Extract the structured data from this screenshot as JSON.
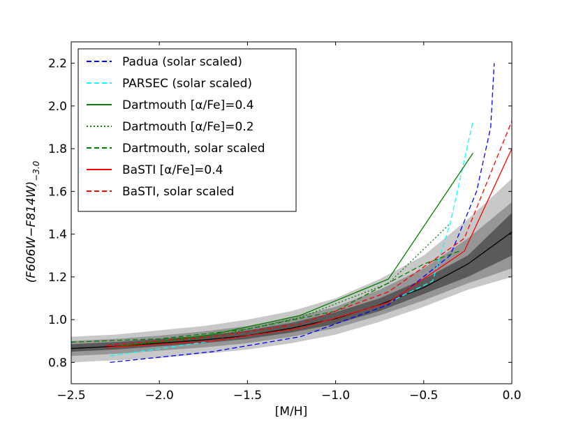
{
  "chart_data": {
    "type": "line",
    "title": "",
    "xlabel": "[M/H]",
    "ylabel": "(F606W−F814W)",
    "ylabel_subscript": "−3.0",
    "xlim": [
      -2.5,
      0.0
    ],
    "ylim": [
      0.7,
      2.3
    ],
    "xticks": [
      -2.5,
      -2.0,
      -1.5,
      -1.0,
      -0.5,
      0.0
    ],
    "xtick_labels": [
      "−2.5",
      "−2.0",
      "−1.5",
      "−1.0",
      "−0.5",
      "0.0"
    ],
    "yticks": [
      0.8,
      1.0,
      1.2,
      1.4,
      1.6,
      1.8,
      2.0,
      2.2
    ],
    "ytick_labels": [
      "0.8",
      "1.0",
      "1.2",
      "1.4",
      "1.6",
      "1.8",
      "2.0",
      "2.2"
    ],
    "legend_position": "top-left",
    "background_bands": [
      {
        "name": "outer-spread",
        "color": "#c8c8c8",
        "x": [
          -2.5,
          -2.25,
          -2.0,
          -1.75,
          -1.5,
          -1.25,
          -1.0,
          -0.75,
          -0.5,
          -0.25,
          0.0
        ],
        "low": [
          0.8,
          0.81,
          0.82,
          0.84,
          0.86,
          0.89,
          0.93,
          0.99,
          1.06,
          1.14,
          1.2
        ],
        "high": [
          0.92,
          0.93,
          0.95,
          0.97,
          1.0,
          1.04,
          1.1,
          1.19,
          1.3,
          1.47,
          1.66
        ]
      },
      {
        "name": "mid-spread",
        "color": "#969696",
        "x": [
          -2.5,
          -2.25,
          -2.0,
          -1.75,
          -1.5,
          -1.25,
          -1.0,
          -0.75,
          -0.5,
          -0.25,
          0.0
        ],
        "low": [
          0.83,
          0.84,
          0.855,
          0.87,
          0.89,
          0.92,
          0.96,
          1.02,
          1.09,
          1.17,
          1.24
        ],
        "high": [
          0.9,
          0.91,
          0.925,
          0.945,
          0.97,
          1.01,
          1.06,
          1.14,
          1.24,
          1.38,
          1.55
        ]
      },
      {
        "name": "inner-spread",
        "color": "#5a5a5a",
        "x": [
          -2.5,
          -2.25,
          -2.0,
          -1.75,
          -1.5,
          -1.25,
          -1.0,
          -0.75,
          -0.5,
          -0.25,
          0.0
        ],
        "low": [
          0.85,
          0.86,
          0.875,
          0.89,
          0.91,
          0.94,
          0.98,
          1.04,
          1.12,
          1.2,
          1.3
        ],
        "high": [
          0.885,
          0.895,
          0.91,
          0.925,
          0.95,
          0.985,
          1.035,
          1.1,
          1.19,
          1.3,
          1.5
        ]
      }
    ],
    "median_line": {
      "name": "median",
      "color": "#000000",
      "x": [
        -2.5,
        -2.25,
        -2.0,
        -1.75,
        -1.5,
        -1.25,
        -1.0,
        -0.75,
        -0.5,
        -0.25,
        0.0
      ],
      "y": [
        0.865,
        0.875,
        0.89,
        0.905,
        0.925,
        0.96,
        1.005,
        1.07,
        1.15,
        1.26,
        1.41
      ]
    },
    "series": [
      {
        "name": "Padua (solar scaled)",
        "color": "#0000ff",
        "dash": "dashed",
        "x": [
          -2.28,
          -1.7,
          -1.2,
          -0.7,
          -0.35,
          -0.2,
          -0.12,
          -0.1
        ],
        "y": [
          0.8,
          0.85,
          0.92,
          1.07,
          1.3,
          1.6,
          1.9,
          2.2
        ]
      },
      {
        "name": "PARSEC (solar scaled)",
        "color": "#00ffff",
        "dash": "dashed",
        "x": [
          -2.28,
          -1.7,
          -1.2,
          -0.7,
          -0.45,
          -0.35,
          -0.22
        ],
        "y": [
          0.83,
          0.9,
          0.96,
          1.08,
          1.18,
          1.45,
          1.93
        ]
      },
      {
        "name": "Dartmouth [α/Fe]=0.4",
        "color": "#008000",
        "dash": "solid",
        "x": [
          -2.28,
          -1.7,
          -1.2,
          -0.7,
          -0.22
        ],
        "y": [
          0.87,
          0.93,
          1.02,
          1.19,
          1.78
        ]
      },
      {
        "name": "Dartmouth [α/Fe]=0.2",
        "color": "#008000",
        "dash": "dotted",
        "x": [
          -2.28,
          -1.7,
          -1.2,
          -0.7,
          -0.35
        ],
        "y": [
          0.87,
          0.92,
          1.01,
          1.17,
          1.45
        ]
      },
      {
        "name": "Dartmouth, solar scaled",
        "color": "#008000",
        "dash": "dashed",
        "x": [
          -2.5,
          -2.0,
          -1.5,
          -1.0,
          -0.5,
          -0.3
        ],
        "y": [
          0.895,
          0.91,
          0.955,
          1.04,
          1.26,
          1.32
        ]
      },
      {
        "name": "BaSTI [α/Fe]=0.4",
        "color": "#ff0000",
        "dash": "solid",
        "x": [
          -2.3,
          -1.7,
          -1.2,
          -0.7,
          -0.27,
          0.0
        ],
        "y": [
          0.87,
          0.9,
          0.96,
          1.08,
          1.32,
          1.8
        ]
      },
      {
        "name": "BaSTI, solar scaled",
        "color": "#ff0000",
        "dash": "dashed",
        "x": [
          -2.3,
          -1.7,
          -1.2,
          -0.7,
          -0.27,
          0.0
        ],
        "y": [
          0.88,
          0.92,
          0.98,
          1.13,
          1.38,
          1.93
        ]
      }
    ]
  }
}
